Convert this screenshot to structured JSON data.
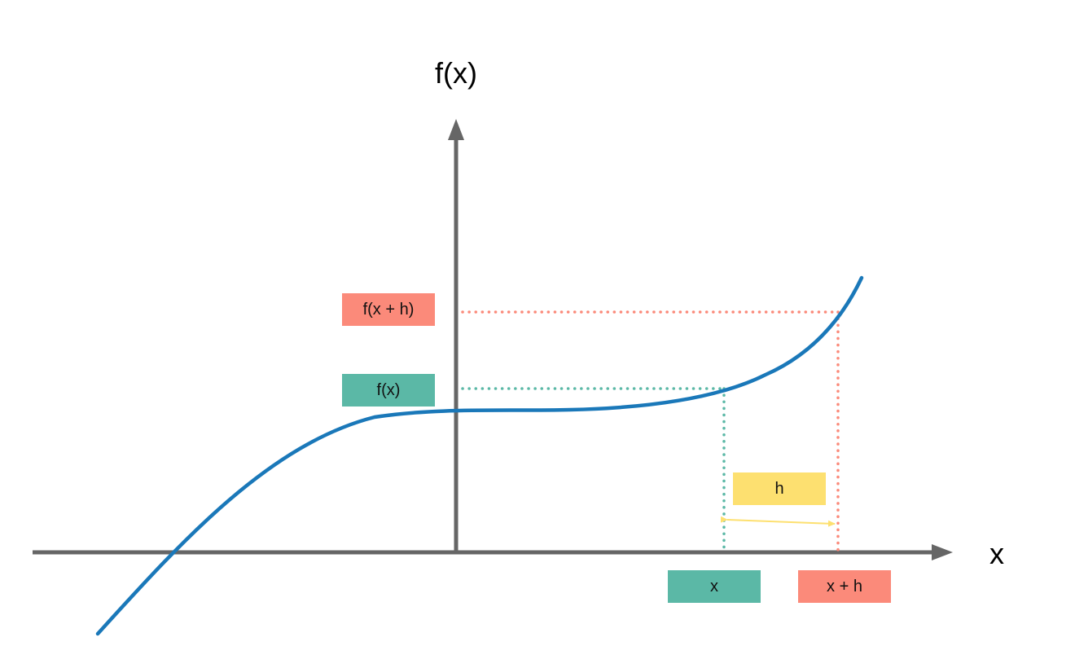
{
  "axes": {
    "y_label": "f(x)",
    "x_label": "x"
  },
  "labels": {
    "f_x_plus_h": "f(x + h)",
    "f_x": "f(x)",
    "h": "h",
    "x": "x",
    "x_plus_h": "x + h"
  },
  "colors": {
    "axis": "#666666",
    "curve": "#1a78b9",
    "teal": "#5bb8a6",
    "salmon": "#fb8a7a",
    "yellow": "#fde070"
  }
}
